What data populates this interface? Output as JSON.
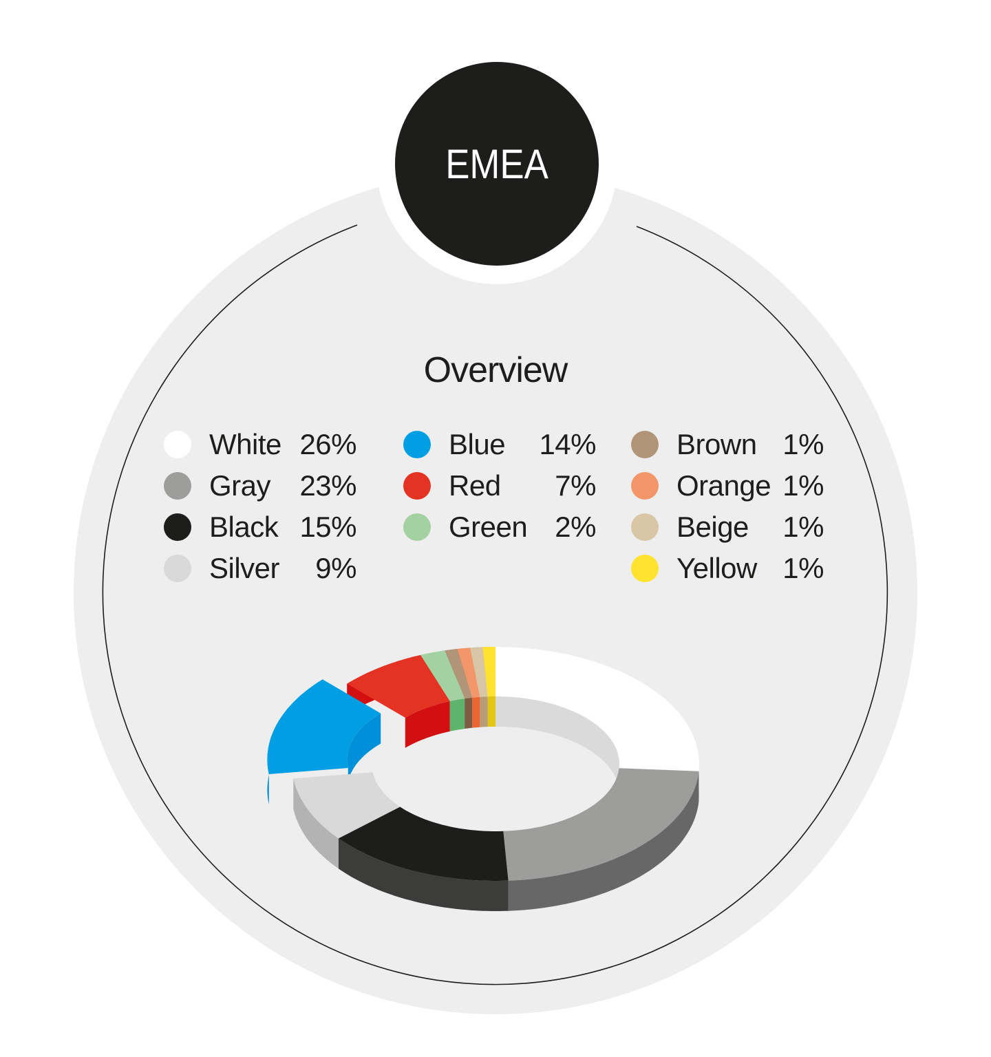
{
  "badge": {
    "label": "EMEA"
  },
  "title": "Overview",
  "legend": {
    "columns": [
      [
        {
          "name": "White",
          "value": "26%",
          "color": "#ffffff"
        },
        {
          "name": "Gray",
          "value": "23%",
          "color": "#9d9d9c"
        },
        {
          "name": "Black",
          "value": "15%",
          "color": "#1d1d1b"
        },
        {
          "name": "Silver",
          "value": "9%",
          "color": "#d9d9d9"
        }
      ],
      [
        {
          "name": "Blue",
          "value": "14%",
          "color": "#009fe3"
        },
        {
          "name": "Red",
          "value": "7%",
          "color": "#e53323"
        },
        {
          "name": "Green",
          "value": "2%",
          "color": "#a4d1a1"
        }
      ],
      [
        {
          "name": "Brown",
          "value": "1%",
          "color": "#b29479"
        },
        {
          "name": "Orange",
          "value": "1%",
          "color": "#f3966a"
        },
        {
          "name": "Beige",
          "value": "1%",
          "color": "#d9c6a7"
        },
        {
          "name": "Yellow",
          "value": "1%",
          "color": "#ffe32f"
        }
      ]
    ]
  },
  "chart_data": {
    "type": "pie",
    "title": "Overview",
    "subtitle": "EMEA",
    "style": "3d-donut",
    "exploded": [
      "Blue"
    ],
    "start_angle": "12 o'clock, clockwise",
    "categories": [
      "White",
      "Gray",
      "Black",
      "Silver",
      "Blue",
      "Red",
      "Green",
      "Brown",
      "Orange",
      "Beige",
      "Yellow"
    ],
    "values": [
      26,
      23,
      15,
      9,
      14,
      7,
      2,
      1,
      1,
      1,
      1
    ],
    "unit": "%",
    "colors": [
      "#ffffff",
      "#9d9d9c",
      "#1d1d1b",
      "#d9d9d9",
      "#009fe3",
      "#e53323",
      "#a4d1a1",
      "#b29479",
      "#f3966a",
      "#d9c6a7",
      "#ffe32f"
    ],
    "side_colors": [
      "#dadada",
      "#676767",
      "#3c3c3b",
      "#b3b3b3",
      "#0090d9",
      "#d20f11",
      "#5eb46d",
      "#7e5c41",
      "#ec6530",
      "#b89c77",
      "#e2c612"
    ],
    "legend_position": "above chart, three columns"
  }
}
